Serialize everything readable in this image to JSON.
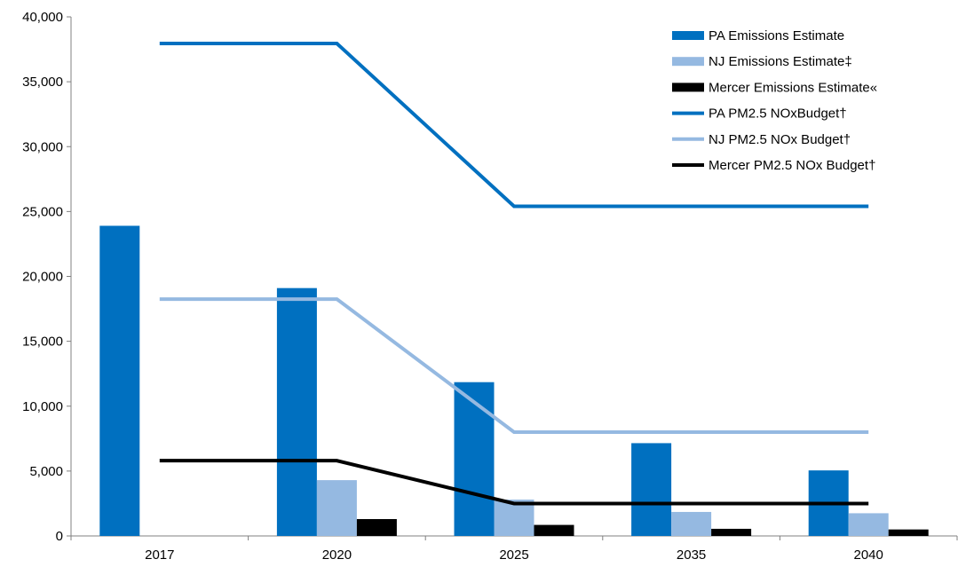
{
  "chart_data": {
    "type": "bar",
    "categories": [
      "2017",
      "2020",
      "2025",
      "2035",
      "2040"
    ],
    "ylim": [
      0,
      40000
    ],
    "yticks": [
      0,
      5000,
      10000,
      15000,
      20000,
      25000,
      30000,
      35000,
      40000
    ],
    "ytick_labels": [
      "0",
      "5,000",
      "10,000",
      "15,000",
      "20,000",
      "25,000",
      "30,000",
      "35,000",
      "40,000"
    ],
    "grid": false,
    "legend_position": "top-right",
    "series": [
      {
        "name": "PA Emissions Estimate",
        "kind": "bar",
        "color": "#0070c0",
        "values": [
          23900,
          19100,
          11850,
          7150,
          5050
        ]
      },
      {
        "name": "NJ Emissions Estimate‡",
        "kind": "bar",
        "color": "#95b9e1",
        "values": [
          null,
          4300,
          2800,
          1850,
          1750
        ]
      },
      {
        "name": "Mercer Emissions Estimate«",
        "kind": "bar",
        "color": "#000000",
        "values": [
          null,
          1300,
          850,
          550,
          500
        ]
      },
      {
        "name": "PA PM2.5 NOxBudget†",
        "kind": "line",
        "color": "#0070c0",
        "values": [
          37950,
          37950,
          25400,
          25400,
          25400
        ]
      },
      {
        "name": "NJ PM2.5 NOx Budget†",
        "kind": "line",
        "color": "#95b9e1",
        "values": [
          18250,
          18250,
          8000,
          8000,
          8000
        ]
      },
      {
        "name": "Mercer PM2.5 NOx Budget†",
        "kind": "line",
        "color": "#000000",
        "values": [
          5800,
          5800,
          2500,
          2500,
          2500
        ]
      }
    ]
  }
}
